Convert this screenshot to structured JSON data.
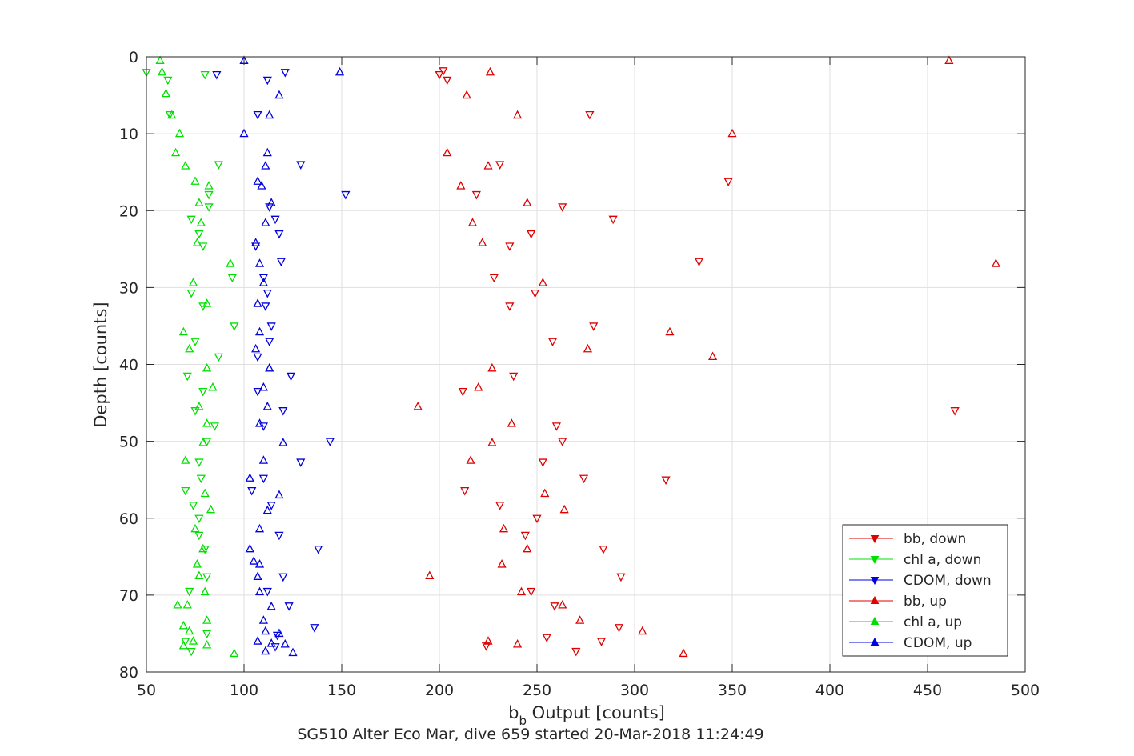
{
  "chart_data": {
    "type": "scatter",
    "title": "",
    "caption": "SG510 Alter Eco Mar, dive 659 started 20-Mar-2018 11:24:49",
    "xlabel_main": "b",
    "xlabel_sub": "b",
    "xlabel_rest": " Output [counts]",
    "ylabel": "Depth [counts]",
    "xlim": [
      50,
      500
    ],
    "ylim": [
      0,
      80
    ],
    "y_reversed": true,
    "grid": true,
    "legend_position": "bottom-right",
    "x_ticks": [
      50,
      100,
      150,
      200,
      250,
      300,
      350,
      400,
      450,
      500
    ],
    "y_ticks": [
      0,
      10,
      20,
      30,
      40,
      50,
      60,
      70,
      80
    ],
    "series": [
      {
        "name": "bb, down",
        "marker": "triangle-down",
        "color": "#e00000",
        "points": [
          [
            200,
            2.3
          ],
          [
            202,
            1.8
          ],
          [
            204,
            3
          ],
          [
            277,
            7.5
          ],
          [
            231,
            14
          ],
          [
            348,
            16.2
          ],
          [
            219,
            17.9
          ],
          [
            263,
            19.5
          ],
          [
            289,
            21.1
          ],
          [
            247,
            23
          ],
          [
            236,
            24.6
          ],
          [
            333,
            26.6
          ],
          [
            228,
            28.7
          ],
          [
            249,
            30.7
          ],
          [
            236,
            32.4
          ],
          [
            279,
            35
          ],
          [
            258,
            37
          ],
          [
            238,
            41.5
          ],
          [
            212,
            43.5
          ],
          [
            464,
            46
          ],
          [
            260,
            48
          ],
          [
            263,
            50
          ],
          [
            253,
            52.7
          ],
          [
            274,
            54.8
          ],
          [
            316,
            55
          ],
          [
            213,
            56.4
          ],
          [
            231,
            58.3
          ],
          [
            250,
            60
          ],
          [
            244,
            62.2
          ],
          [
            284,
            64
          ],
          [
            293,
            67.6
          ],
          [
            247,
            69.5
          ],
          [
            259,
            71.4
          ],
          [
            292,
            74.2
          ],
          [
            255,
            75.5
          ],
          [
            283,
            76
          ],
          [
            224,
            76.6
          ],
          [
            270,
            77.3
          ]
        ]
      },
      {
        "name": "chl a, down",
        "marker": "triangle-down",
        "color": "#00e000",
        "points": [
          [
            50,
            2
          ],
          [
            80,
            2.3
          ],
          [
            61,
            3
          ],
          [
            62,
            7.5
          ],
          [
            87,
            14
          ],
          [
            82,
            17.9
          ],
          [
            82,
            19.5
          ],
          [
            73,
            21.1
          ],
          [
            77,
            23
          ],
          [
            79,
            24.6
          ],
          [
            94,
            28.7
          ],
          [
            73,
            30.7
          ],
          [
            79,
            32.4
          ],
          [
            95,
            35
          ],
          [
            75,
            37
          ],
          [
            87,
            39
          ],
          [
            71,
            41.5
          ],
          [
            79,
            43.5
          ],
          [
            75,
            46
          ],
          [
            85,
            48
          ],
          [
            81,
            50
          ],
          [
            77,
            52.7
          ],
          [
            78,
            54.8
          ],
          [
            70,
            56.4
          ],
          [
            74,
            58.3
          ],
          [
            77,
            60
          ],
          [
            77,
            62.2
          ],
          [
            80,
            64
          ],
          [
            81,
            67.6
          ],
          [
            72,
            69.5
          ],
          [
            81,
            75
          ],
          [
            70,
            76
          ],
          [
            73,
            77.3
          ]
        ]
      },
      {
        "name": "CDOM, down",
        "marker": "triangle-down",
        "color": "#0000e0",
        "points": [
          [
            86,
            2.3
          ],
          [
            121,
            2
          ],
          [
            112,
            3
          ],
          [
            107,
            7.5
          ],
          [
            129,
            14
          ],
          [
            152,
            17.9
          ],
          [
            113,
            19.5
          ],
          [
            116,
            21.1
          ],
          [
            118,
            23
          ],
          [
            106,
            24.6
          ],
          [
            119,
            26.6
          ],
          [
            110,
            28.7
          ],
          [
            112,
            30.7
          ],
          [
            111,
            32.4
          ],
          [
            114,
            35
          ],
          [
            113,
            37
          ],
          [
            107,
            39
          ],
          [
            124,
            41.5
          ],
          [
            107,
            43.5
          ],
          [
            120,
            46
          ],
          [
            110,
            48
          ],
          [
            144,
            50
          ],
          [
            129,
            52.7
          ],
          [
            110,
            54.8
          ],
          [
            104,
            56.4
          ],
          [
            114,
            58.3
          ],
          [
            118,
            62.2
          ],
          [
            138,
            64
          ],
          [
            120,
            67.6
          ],
          [
            112,
            69.5
          ],
          [
            123,
            71.4
          ],
          [
            136,
            74.2
          ],
          [
            117,
            75.2
          ],
          [
            116,
            76.7
          ]
        ]
      },
      {
        "name": "bb, up",
        "marker": "triangle-up",
        "color": "#e00000",
        "points": [
          [
            461,
            0.5
          ],
          [
            226,
            2
          ],
          [
            214,
            5
          ],
          [
            240,
            7.6
          ],
          [
            350,
            10
          ],
          [
            204,
            12.5
          ],
          [
            225,
            14.2
          ],
          [
            211,
            16.8
          ],
          [
            245,
            19
          ],
          [
            217,
            21.6
          ],
          [
            222,
            24.2
          ],
          [
            485,
            26.9
          ],
          [
            253,
            29.4
          ],
          [
            318,
            35.8
          ],
          [
            276,
            38
          ],
          [
            340,
            39
          ],
          [
            227,
            40.5
          ],
          [
            220,
            43
          ],
          [
            189,
            45.5
          ],
          [
            237,
            47.7
          ],
          [
            227,
            50.2
          ],
          [
            216,
            52.5
          ],
          [
            254,
            56.8
          ],
          [
            264,
            58.9
          ],
          [
            233,
            61.4
          ],
          [
            245,
            64
          ],
          [
            232,
            66
          ],
          [
            195,
            67.5
          ],
          [
            242,
            69.6
          ],
          [
            263,
            71.3
          ],
          [
            272,
            73.3
          ],
          [
            304,
            74.7
          ],
          [
            225,
            76
          ],
          [
            240,
            76.4
          ],
          [
            325,
            77.6
          ]
        ]
      },
      {
        "name": "chl a, up",
        "marker": "triangle-up",
        "color": "#00e000",
        "points": [
          [
            57,
            0.5
          ],
          [
            58,
            2
          ],
          [
            60,
            4.8
          ],
          [
            63,
            7.6
          ],
          [
            67,
            10
          ],
          [
            65,
            12.5
          ],
          [
            70,
            14.2
          ],
          [
            75,
            16.2
          ],
          [
            82,
            16.8
          ],
          [
            77,
            19
          ],
          [
            78,
            21.6
          ],
          [
            76,
            24.2
          ],
          [
            93,
            26.9
          ],
          [
            74,
            29.4
          ],
          [
            81,
            32.1
          ],
          [
            69,
            35.8
          ],
          [
            72,
            38
          ],
          [
            81,
            40.5
          ],
          [
            84,
            43
          ],
          [
            77,
            45.5
          ],
          [
            81,
            47.7
          ],
          [
            79,
            50.2
          ],
          [
            70,
            52.5
          ],
          [
            80,
            56.8
          ],
          [
            83,
            58.9
          ],
          [
            75,
            61.4
          ],
          [
            79,
            64
          ],
          [
            76,
            66
          ],
          [
            77,
            67.5
          ],
          [
            80,
            69.6
          ],
          [
            66,
            71.3
          ],
          [
            71,
            71.3
          ],
          [
            69,
            74
          ],
          [
            81,
            73.3
          ],
          [
            72,
            74.7
          ],
          [
            74,
            76
          ],
          [
            81,
            76.5
          ],
          [
            69,
            76.6
          ],
          [
            95,
            77.6
          ]
        ]
      },
      {
        "name": "CDOM, up",
        "marker": "triangle-up",
        "color": "#0000e0",
        "points": [
          [
            100,
            0.5
          ],
          [
            149,
            2
          ],
          [
            118,
            5
          ],
          [
            113,
            7.6
          ],
          [
            100,
            10
          ],
          [
            112,
            12.5
          ],
          [
            111,
            14.2
          ],
          [
            107,
            16.2
          ],
          [
            109,
            16.8
          ],
          [
            114,
            19
          ],
          [
            111,
            21.6
          ],
          [
            106,
            24.2
          ],
          [
            108,
            26.9
          ],
          [
            110,
            29.4
          ],
          [
            107,
            32.1
          ],
          [
            108,
            35.8
          ],
          [
            106,
            38
          ],
          [
            113,
            40.5
          ],
          [
            110,
            43
          ],
          [
            112,
            45.5
          ],
          [
            108,
            47.7
          ],
          [
            120,
            50.2
          ],
          [
            110,
            52.5
          ],
          [
            103,
            54.8
          ],
          [
            118,
            57
          ],
          [
            112,
            59
          ],
          [
            108,
            61.4
          ],
          [
            103,
            64
          ],
          [
            105,
            65.6
          ],
          [
            108,
            66
          ],
          [
            107,
            67.6
          ],
          [
            108,
            69.6
          ],
          [
            114,
            71.5
          ],
          [
            110,
            73.3
          ],
          [
            111,
            74.7
          ],
          [
            118,
            75
          ],
          [
            107,
            76
          ],
          [
            114,
            76.3
          ],
          [
            121,
            76.4
          ],
          [
            125,
            77.5
          ],
          [
            111,
            77.3
          ]
        ]
      }
    ]
  }
}
